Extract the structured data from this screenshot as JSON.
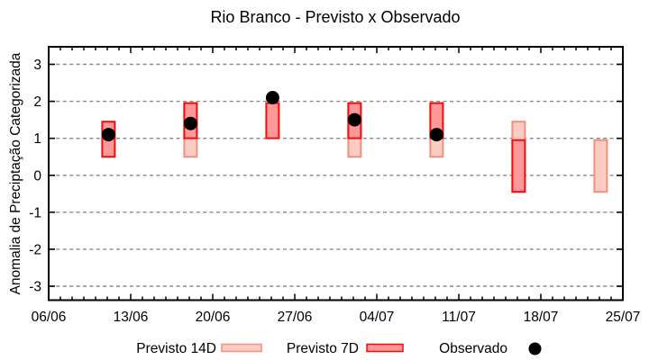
{
  "chart_data": {
    "type": "bar",
    "title": "Rio Branco - Previsto x Observado",
    "ylabel": "Anomalia de Preciptação Categorizada",
    "xlabel": "",
    "ylim": [
      -3.4,
      3.5
    ],
    "y_ticks": [
      3,
      2,
      1,
      0,
      -1,
      -2,
      -3
    ],
    "x_range_days": [
      0,
      49
    ],
    "x_minor_tick_interval_days": 1,
    "x_ticks": [
      {
        "day": 0,
        "label": "06/06"
      },
      {
        "day": 7,
        "label": "13/06"
      },
      {
        "day": 14,
        "label": "20/06"
      },
      {
        "day": 21,
        "label": "27/06"
      },
      {
        "day": 28,
        "label": "04/07"
      },
      {
        "day": 35,
        "label": "11/07"
      },
      {
        "day": 42,
        "label": "18/07"
      },
      {
        "day": 49,
        "label": "25/07"
      }
    ],
    "grid": "horizontal-dashed",
    "legend_position": "bottom",
    "series": [
      {
        "name": "Previsto 14D",
        "key": "p14",
        "type": "range-bar",
        "fill": "#fbccc4",
        "stroke": "#f0907e"
      },
      {
        "name": "Previsto 7D",
        "key": "p7",
        "type": "range-bar",
        "fill": "#ff9898",
        "stroke": "#f20d0d"
      },
      {
        "name": "Observado",
        "key": "obs",
        "type": "scatter",
        "color": "#000000"
      }
    ],
    "colors": {
      "grid": "#8a8a8a",
      "axis": "#000000",
      "background": "#ffffff"
    },
    "points": [
      {
        "date": "11/06",
        "day": 5,
        "p14": null,
        "p7": [
          0.5,
          1.45
        ],
        "obs": 1.1
      },
      {
        "date": "18/06",
        "day": 12,
        "p14": [
          0.5,
          1.95
        ],
        "p7": [
          1.0,
          1.95
        ],
        "obs": 1.4
      },
      {
        "date": "25/06",
        "day": 19,
        "p14": null,
        "p7": [
          1.0,
          1.95
        ],
        "obs": 2.1
      },
      {
        "date": "02/07",
        "day": 26,
        "p14": [
          0.5,
          1.95
        ],
        "p7": [
          1.0,
          1.95
        ],
        "obs": 1.5
      },
      {
        "date": "09/07",
        "day": 33,
        "p14": [
          0.5,
          1.95
        ],
        "p7": [
          1.0,
          1.95
        ],
        "obs": 1.1
      },
      {
        "date": "16/07",
        "day": 40,
        "p14": [
          -0.45,
          1.45
        ],
        "p7": [
          -0.45,
          0.95
        ],
        "obs": null
      },
      {
        "date": "23/07",
        "day": 47,
        "p14": [
          -0.45,
          0.95
        ],
        "p7": null,
        "obs": null
      }
    ]
  }
}
